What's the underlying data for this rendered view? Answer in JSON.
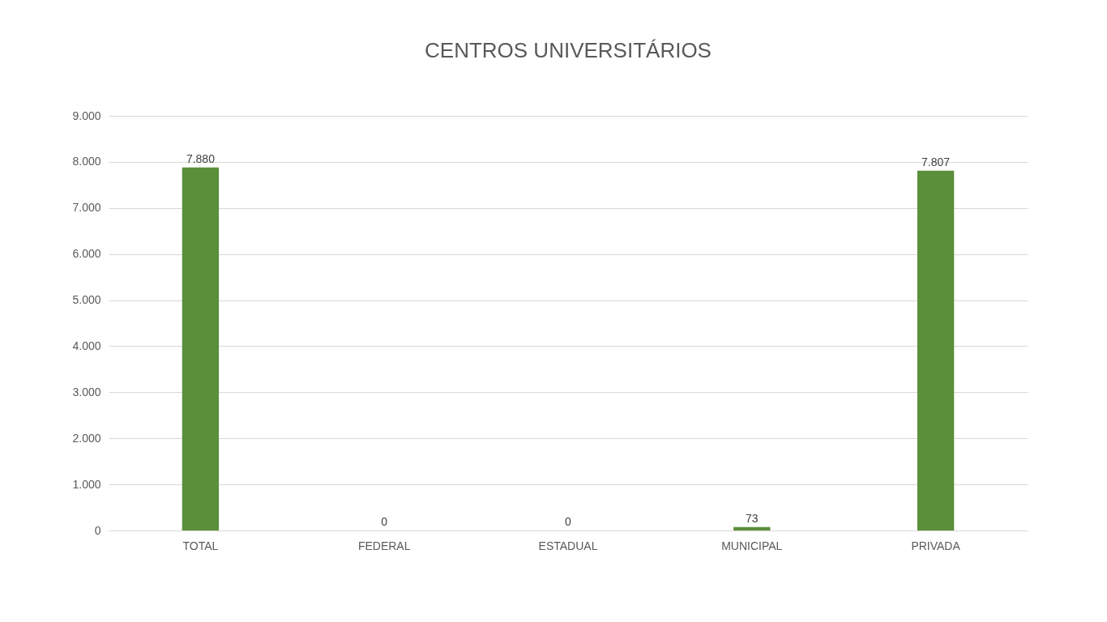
{
  "chart_data": {
    "type": "bar",
    "title": "CENTROS UNIVERSITÁRIOS",
    "categories": [
      "TOTAL",
      "FEDERAL",
      "ESTADUAL",
      "MUNICIPAL",
      "PRIVADA"
    ],
    "values": [
      7880,
      0,
      0,
      73,
      7807
    ],
    "value_labels": [
      "7.880",
      "0",
      "0",
      "73",
      "7.807"
    ],
    "color": "#5b8f3a",
    "ylim": [
      0,
      9000
    ],
    "yticks": [
      {
        "value": 0,
        "label": "0"
      },
      {
        "value": 1000,
        "label": "1.000"
      },
      {
        "value": 2000,
        "label": "2.000"
      },
      {
        "value": 3000,
        "label": "3.000"
      },
      {
        "value": 4000,
        "label": "4.000"
      },
      {
        "value": 5000,
        "label": "5.000"
      },
      {
        "value": 6000,
        "label": "6.000"
      },
      {
        "value": 7000,
        "label": "7.000"
      },
      {
        "value": 8000,
        "label": "8.000"
      },
      {
        "value": 9000,
        "label": "9.000"
      }
    ],
    "grid": "y"
  }
}
